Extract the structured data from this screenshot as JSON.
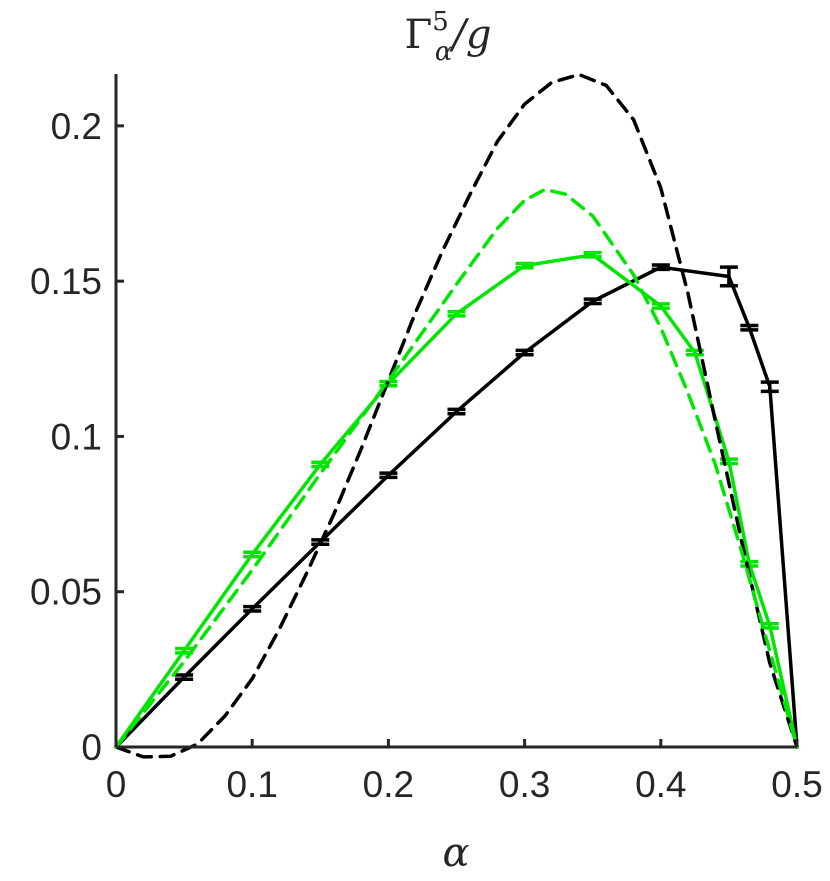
{
  "chart_data": {
    "type": "line",
    "title": "Γ⁵α/g",
    "title_parts": {
      "base": "Γ",
      "sup": "5",
      "sub": "α",
      "rest": "/g"
    },
    "xlabel": "α",
    "ylabel": "",
    "xlim": [
      0,
      0.5
    ],
    "ylim": [
      0,
      0.2167
    ],
    "xticks": [
      "0",
      "0.1",
      "0.2",
      "0.3",
      "0.4",
      "0.5"
    ],
    "yticks": [
      "0",
      "0.05",
      "0.1",
      "0.15",
      "0.2"
    ],
    "grid": false,
    "legend": false,
    "colors": {
      "black": "#000000",
      "green": "#00e600",
      "axis": "#262626"
    },
    "series": [
      {
        "color": "black",
        "style": "solid",
        "x": [
          0,
          0.05,
          0.1,
          0.15,
          0.2,
          0.25,
          0.3,
          0.35,
          0.4,
          0.45,
          0.465,
          0.48,
          0.5
        ],
        "y": [
          0,
          0.0225,
          0.0445,
          0.066,
          0.0875,
          0.108,
          0.127,
          0.1435,
          0.1545,
          0.1515,
          0.135,
          0.116,
          0
        ],
        "err": [
          0,
          0.0007,
          0.0007,
          0.0007,
          0.0007,
          0.0007,
          0.0007,
          0.0007,
          0.0007,
          0.003,
          0.0007,
          0.0015,
          0
        ]
      },
      {
        "color": "green",
        "style": "solid",
        "x": [
          0,
          0.05,
          0.1,
          0.15,
          0.2,
          0.25,
          0.3,
          0.35,
          0.4,
          0.425,
          0.45,
          0.465,
          0.48,
          0.5
        ],
        "y": [
          0,
          0.031,
          0.062,
          0.091,
          0.117,
          0.1395,
          0.155,
          0.1585,
          0.142,
          0.127,
          0.092,
          0.059,
          0.039,
          0
        ],
        "err": [
          0,
          0.0007,
          0.0007,
          0.0007,
          0.0007,
          0.0007,
          0.0007,
          0.0007,
          0.0007,
          0.0007,
          0.0007,
          0.0007,
          0.0007,
          0
        ]
      },
      {
        "color": "black",
        "style": "dashed",
        "x": [
          0,
          0.02,
          0.04,
          0.06,
          0.08,
          0.1,
          0.12,
          0.14,
          0.16,
          0.18,
          0.2,
          0.22,
          0.24,
          0.26,
          0.28,
          0.3,
          0.32,
          0.34,
          0.36,
          0.38,
          0.4,
          0.42,
          0.44,
          0.46,
          0.48,
          0.5
        ],
        "y": [
          0,
          -0.0032,
          -0.003,
          0.001,
          0.01,
          0.022,
          0.038,
          0.056,
          0.075,
          0.096,
          0.118,
          0.14,
          0.16,
          0.178,
          0.195,
          0.207,
          0.214,
          0.2165,
          0.213,
          0.202,
          0.18,
          0.146,
          0.105,
          0.065,
          0.027,
          0
        ]
      },
      {
        "color": "green",
        "style": "dashed",
        "x": [
          0,
          0.05,
          0.1,
          0.15,
          0.2,
          0.25,
          0.28,
          0.3,
          0.315,
          0.33,
          0.35,
          0.38,
          0.4,
          0.42,
          0.44,
          0.46,
          0.48,
          0.5
        ],
        "y": [
          0,
          0.0275,
          0.057,
          0.088,
          0.118,
          0.149,
          0.167,
          0.176,
          0.1795,
          0.178,
          0.171,
          0.152,
          0.135,
          0.114,
          0.091,
          0.062,
          0.031,
          0
        ]
      }
    ]
  }
}
